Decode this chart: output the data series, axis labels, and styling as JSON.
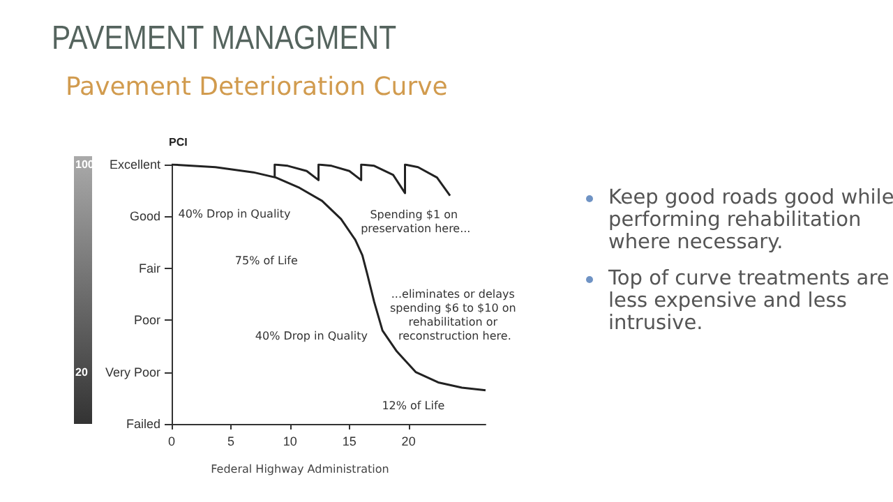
{
  "chart_data": {
    "type": "line",
    "title": "PAVEMENT MANAGMENT",
    "subtitle": "Pavement Deterioration Curve",
    "ylabel": "PCI",
    "annotations": [
      "Federal Highway Administration",
      "Keep good roads good while performing rehabilitation where necessary.",
      "Top of curve treatments are less expensive and less intrusive.",
      "40% Drop in Quality",
      "75% of Life",
      "40% Drop in Quality",
      "12% of Life",
      "Spending $1 on preservation here...",
      "...eliminates or delays spending $6 to $10 on rehabilitation or reconstruction here.",
      "Excellent",
      "Good",
      "Fair",
      "Poor",
      "Very Poor",
      "Failed"
    ],
    "series": [
      {
        "color": "#222222",
        "x": [
          0,
          3.7,
          6.9,
          8.8,
          10.8,
          12.7,
          14.3,
          15.5,
          16.1,
          16.5,
          17.1,
          17.8,
          19.0,
          20.6,
          22.5,
          24.5,
          26.5
        ],
        "values": [
          100,
          99,
          97,
          95,
          91,
          86,
          79,
          71,
          65,
          58,
          47,
          36,
          28,
          20,
          16,
          14,
          13
        ]
      },
      {
        "color": "#222222",
        "x": [
          8.7,
          8.7,
          9.8,
          11.4,
          12.4,
          12.4,
          13.5,
          15.0,
          16.0,
          16.0,
          17.1,
          18.7,
          19.7,
          19.7,
          20.8,
          22.4,
          23.5
        ],
        "values": [
          95,
          100,
          99.5,
          97.5,
          94,
          100,
          99.5,
          97.5,
          94,
          100,
          99.5,
          96,
          89,
          100,
          99,
          95,
          88
        ]
      }
    ],
    "xlim": [
      0,
      26.5
    ],
    "xticks": [
      0,
      5,
      10,
      15,
      20
    ],
    "ylim": [
      0,
      100
    ],
    "yticks": [
      20,
      100
    ],
    "grid": false,
    "marker": "none",
    "line_style": "solid"
  }
}
